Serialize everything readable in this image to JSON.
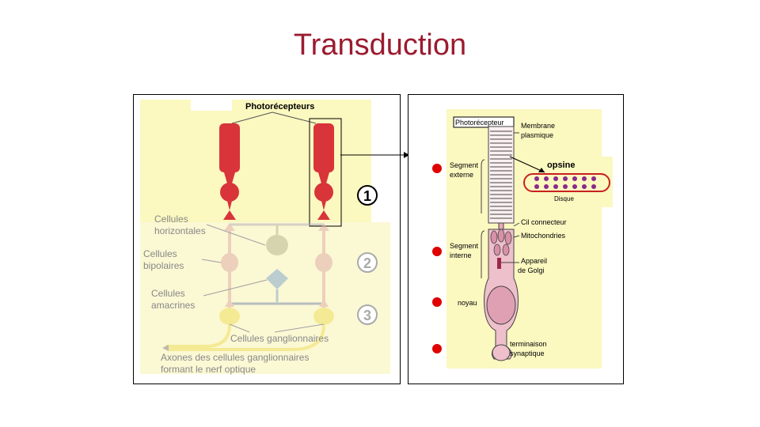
{
  "slide": {
    "title": "Transduction"
  },
  "retina": {
    "photoreceptors_label": "Photorécepteurs",
    "horizontal_label_1": "Cellules",
    "horizontal_label_2": "horizontales",
    "bipolar_label_1": "Cellules",
    "bipolar_label_2": "bipolaires",
    "amacrine_label_1": "Cellules",
    "amacrine_label_2": "amacrines",
    "ganglion_label": "Cellules ganglionnaires",
    "axon_label_1": "Axones des cellules ganglionnaires",
    "axon_label_2": "formant le nerf optique",
    "steps": [
      "1",
      "2",
      "3"
    ]
  },
  "photoreceptor": {
    "box_label": "Photorécepteur",
    "membrane_1": "Membrane",
    "membrane_2": "plasmique",
    "outer_segment_1": "Segment",
    "outer_segment_2": "externe",
    "opsin": "opsine",
    "disk": "Disque",
    "cilium": "Cil connecteur",
    "mitochondria": "Mitochondries",
    "inner_segment_1": "Segment",
    "inner_segment_2": "interne",
    "golgi_1": "Appareil",
    "golgi_2": "de Golgi",
    "nucleus": "noyau",
    "terminal_1": "terminaison",
    "terminal_2": "synaptique"
  },
  "colors": {
    "title": "#9b1b30",
    "background_yellow": "#fbf8c0",
    "photoreceptor_red": "#d8343a",
    "marker_red": "#e00000",
    "opsin_purple": "#8a2a8a"
  }
}
